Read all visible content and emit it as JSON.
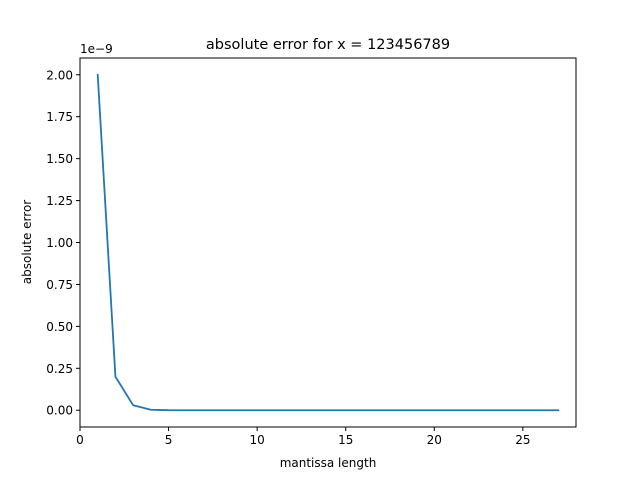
{
  "chart_data": {
    "type": "line",
    "title": "absolute error for x = 123456789",
    "xlabel": "mantissa length",
    "ylabel": "absolute error",
    "y_offset_label": "1e−9",
    "xlim": [
      0,
      28
    ],
    "ylim": [
      -0.1,
      2.1
    ],
    "x_ticks": [
      0,
      5,
      10,
      15,
      20,
      25
    ],
    "x_tick_labels": [
      "0",
      "5",
      "10",
      "15",
      "20",
      "25"
    ],
    "y_ticks": [
      0.0,
      0.25,
      0.5,
      0.75,
      1.0,
      1.25,
      1.5,
      1.75,
      2.0
    ],
    "y_tick_labels": [
      "0.00",
      "0.25",
      "0.50",
      "0.75",
      "1.00",
      "1.25",
      "1.50",
      "1.75",
      "2.00"
    ],
    "grid": false,
    "legend": "none",
    "series": [
      {
        "color": "#1f77b4",
        "x": [
          1,
          2,
          3,
          4,
          5,
          6,
          7,
          8,
          9,
          10,
          11,
          12,
          13,
          14,
          15,
          16,
          17,
          18,
          19,
          20,
          21,
          22,
          23,
          24,
          25,
          26,
          27
        ],
        "y": [
          2.0,
          0.2,
          0.03,
          0.003,
          0.0003,
          3e-05,
          3e-06,
          0,
          0,
          0,
          0,
          0,
          0,
          0,
          0,
          0,
          0,
          0,
          0,
          0,
          0,
          0,
          0,
          0,
          0,
          0,
          0
        ]
      }
    ]
  }
}
